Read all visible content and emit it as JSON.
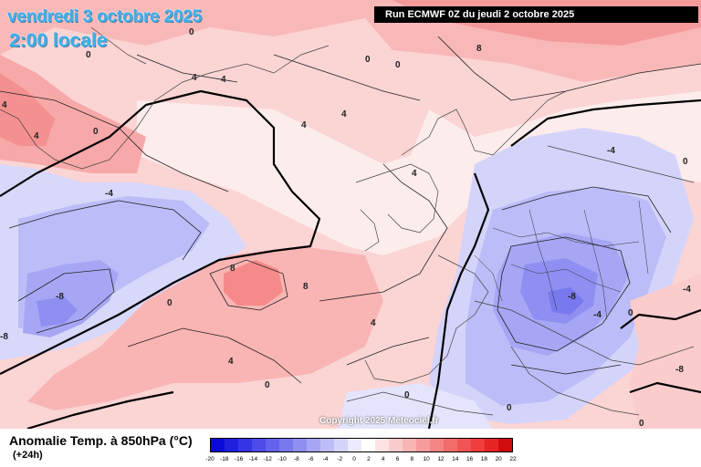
{
  "header": {
    "date": "vendredi 3 octobre 2025",
    "time": "2:00 locale",
    "run": "Run ECMWF 0Z du jeudi 2 octobre 2025"
  },
  "footer": {
    "parameter": "Anomalie Temp. à 850hPa (°C)",
    "lead": "(+24h)",
    "copyright": "Copyright 2025 Meteociel.fr"
  },
  "legend": {
    "labels": [
      "-20",
      "-18",
      "-16",
      "-14",
      "-12",
      "-10",
      "-8",
      "-6",
      "-4",
      "-2",
      "0",
      "2",
      "4",
      "6",
      "8",
      "10",
      "12",
      "14",
      "16",
      "18",
      "20",
      "22"
    ],
    "colors": [
      "#0a0ad8",
      "#1f1fe0",
      "#3535e6",
      "#4b4be9",
      "#6262ec",
      "#7878ef",
      "#8f8ff2",
      "#a6a6f5",
      "#bcbcf8",
      "#d4d4fb",
      "#ebebfd",
      "#ffffff",
      "#fde4e4",
      "#fbcccc",
      "#f9b4b4",
      "#f79c9c",
      "#f58484",
      "#f36c6c",
      "#f15454",
      "#ef3c3c",
      "#e62424",
      "#d00c0c"
    ]
  },
  "map": {
    "contour_labels": [
      "0",
      "0",
      "0",
      "0",
      "4",
      "4",
      "4",
      "4",
      "4",
      "4",
      "4",
      "4",
      "4",
      "-4",
      "-4",
      "-4",
      "-4",
      "-8",
      "-8",
      "-8",
      "-8",
      "8",
      "8",
      "8",
      "0",
      "0",
      "0",
      "0",
      "0",
      "0",
      "0",
      "0"
    ]
  }
}
